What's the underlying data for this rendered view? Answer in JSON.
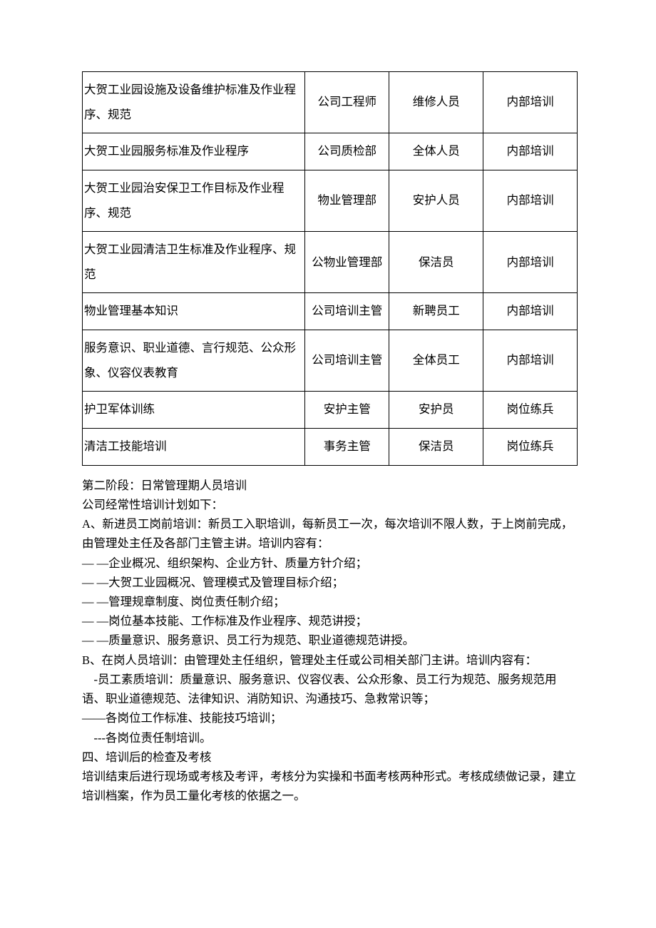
{
  "table": {
    "rows": [
      {
        "c1": "大贺工业园设施及设备维护标准及作业程序、规范",
        "c2": "公司工程师",
        "c3": "维修人员",
        "c4": "内部培训"
      },
      {
        "c1": "大贺工业园服务标准及作业程序",
        "c2": "公司质检部",
        "c3": "全体人员",
        "c4": "内部培训"
      },
      {
        "c1": "大贺工业园治安保卫工作目标及作业程序、规范",
        "c2": "物业管理部",
        "c3": "安护人员",
        "c4": "内部培训"
      },
      {
        "c1": "大贺工业园清洁卫生标准及作业程序、规范",
        "c2": "公物业管理部",
        "c3": "保洁员",
        "c4": "内部培训"
      },
      {
        "c1": "物业管理基本知识",
        "c2": "公司培训主管",
        "c3": "新聘员工",
        "c4": "内部培训"
      },
      {
        "c1": "服务意识、职业道德、言行规范、公众形象、仪容仪表教育",
        "c2": "公司培训主管",
        "c3": "全体员工",
        "c4": "内部培训"
      },
      {
        "c1": "护卫军体训练",
        "c2": "安护主管",
        "c3": "安护员",
        "c4": "岗位练兵"
      },
      {
        "c1": "清洁工技能培训",
        "c2": "事务主管",
        "c3": "保洁员",
        "c4": "岗位练兵"
      }
    ]
  },
  "text": {
    "p1": "第二阶段：日常管理期人员培训",
    "p2": "公司经常性培训计划如下：",
    "p3": "A、新进员工岗前培训：新员工入职培训，每新员工一次，每次培训不限人数，于上岗前完成，由管理处主任及各部门主管主讲。培训内容有：",
    "p4": "— —企业概况、组织架构、企业方针、质量方针介绍；",
    "p5": "— —大贺工业园概况、管理模式及管理目标介绍；",
    "p6": "— —管理规章制度、岗位责任制介绍；",
    "p7": "— —岗位基本技能、工作标准及作业程序、规范讲授；",
    "p8": "— —质量意识、服务意识、员工行为规范、职业道德规范讲授。",
    "p9": "B、在岗人员培训：由管理处主任组织，管理处主任或公司相关部门主讲。培训内容有：",
    "p10": "　-员工素质培训：质量意识、服务意识、仪容仪表、公众形象、员工行为规范、服务规范用语、职业道德规范、法律知识、消防知识、沟通技巧、急救常识等；",
    "p11": "——各岗位工作标准、技能技巧培训；",
    "p12": "　---各岗位责任制培训。",
    "p13": "四、培训后的检查及考核",
    "p14": "培训结束后进行现场或考核及考评，考核分为实操和书面考核两种形式。考核成绩做记录，建立培训档案，作为员工量化考核的依据之一。"
  }
}
